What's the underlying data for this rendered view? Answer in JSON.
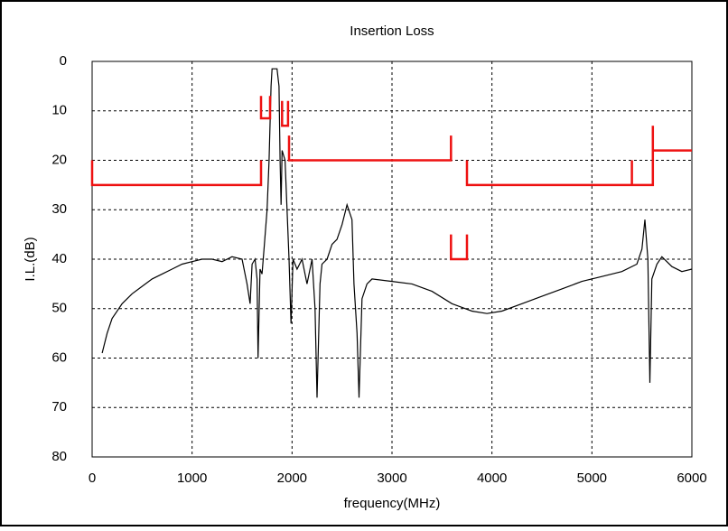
{
  "chart_data": {
    "type": "line",
    "title": "Insertion Loss",
    "xlabel": "frequency(MHz)",
    "ylabel": "I.L.(dB)",
    "xlim": [
      0,
      6000
    ],
    "xticks": [
      0,
      1000,
      2000,
      3000,
      4000,
      5000,
      6000
    ],
    "ylim": [
      80,
      0
    ],
    "yticks": [
      0,
      10,
      20,
      30,
      40,
      50,
      60,
      70,
      80
    ],
    "grid": true,
    "series": [
      {
        "color": "#000000",
        "x": [
          100,
          150,
          200,
          300,
          400,
          500,
          600,
          700,
          800,
          900,
          1000,
          1100,
          1200,
          1300,
          1400,
          1500,
          1550,
          1580,
          1600,
          1630,
          1650,
          1660,
          1680,
          1700,
          1720,
          1750,
          1770,
          1790,
          1800,
          1850,
          1870,
          1880,
          1890,
          1900,
          1930,
          1950,
          1970,
          1990,
          2010,
          2050,
          2100,
          2150,
          2200,
          2230,
          2250,
          2280,
          2300,
          2350,
          2400,
          2450,
          2500,
          2550,
          2600,
          2620,
          2650,
          2670,
          2700,
          2750,
          2800,
          3000,
          3200,
          3400,
          3600,
          3800,
          3950,
          4100,
          4300,
          4500,
          4700,
          4900,
          5100,
          5300,
          5450,
          5500,
          5530,
          5560,
          5580,
          5600,
          5650,
          5700,
          5800,
          5900,
          6000
        ],
        "values": [
          59,
          55,
          52,
          49,
          47,
          45.5,
          44,
          43,
          42,
          41,
          40.5,
          40,
          40,
          40.5,
          39.5,
          40,
          45,
          49,
          41,
          40,
          44,
          60,
          42,
          43,
          38,
          30,
          20,
          5,
          1.5,
          1.5,
          5,
          20,
          29,
          18,
          20,
          30,
          40,
          53,
          40,
          42,
          40,
          45,
          40,
          50,
          68,
          45,
          41,
          40,
          37,
          36,
          33,
          29,
          32,
          45,
          55,
          68,
          48,
          45,
          44,
          44.5,
          45,
          46.5,
          49,
          50.5,
          51,
          50.5,
          49,
          47.5,
          46,
          44.5,
          43.5,
          42.5,
          41,
          38,
          32,
          40,
          65,
          44,
          41,
          39.5,
          41.5,
          42.5,
          42
        ]
      },
      {
        "color": "#ee1111",
        "x": [
          0,
          0,
          1690,
          1690
        ],
        "values": [
          20,
          25,
          25,
          20
        ]
      },
      {
        "color": "#ee1111",
        "x": [
          1690,
          1690,
          1780,
          1780
        ],
        "values": [
          7,
          11.5,
          11.5,
          7
        ]
      },
      {
        "color": "#ee1111",
        "x": [
          1900,
          1900,
          1960,
          1960
        ],
        "values": [
          8,
          13,
          13,
          8
        ]
      },
      {
        "color": "#ee1111",
        "x": [
          1970,
          1970,
          3590,
          3590
        ],
        "values": [
          15,
          20,
          20,
          15
        ]
      },
      {
        "color": "#ee1111",
        "x": [
          3590,
          3590,
          3750,
          3750
        ],
        "values": [
          35,
          40,
          40,
          35
        ]
      },
      {
        "color": "#ee1111",
        "x": [
          3750,
          3750,
          5610,
          5610
        ],
        "values": [
          20,
          25,
          25,
          13
        ]
      },
      {
        "color": "#ee1111",
        "x": [
          5400,
          5400
        ],
        "values": [
          25,
          20
        ]
      },
      {
        "color": "#ee1111",
        "x": [
          5610,
          6000
        ],
        "values": [
          18,
          18
        ]
      }
    ]
  }
}
